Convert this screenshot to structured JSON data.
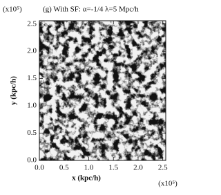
{
  "chart_data": {
    "type": "image",
    "title": "(g) With SF: α=-1/4 λ=5 Mpc/h",
    "x_label": "x (kpc/h)",
    "y_label": "y (kpc/h)",
    "x_multiplier": "(x10⁵)",
    "y_multiplier": "(x10⁵)",
    "xlim": [
      0,
      2.56
    ],
    "ylim": [
      0,
      2.56
    ],
    "xticks": [
      {
        "value": 0,
        "label": "0.0"
      },
      0.5,
      {
        "value": 1,
        "label": "1.0"
      },
      1.5,
      {
        "value": 2,
        "label": "2.0"
      },
      2.5
    ],
    "yticks": [
      {
        "value": 0,
        "label": "0.0"
      },
      0.5,
      {
        "value": 1,
        "label": "1.0"
      },
      1.5,
      {
        "value": 2,
        "label": "2.0"
      },
      2.5
    ]
  }
}
